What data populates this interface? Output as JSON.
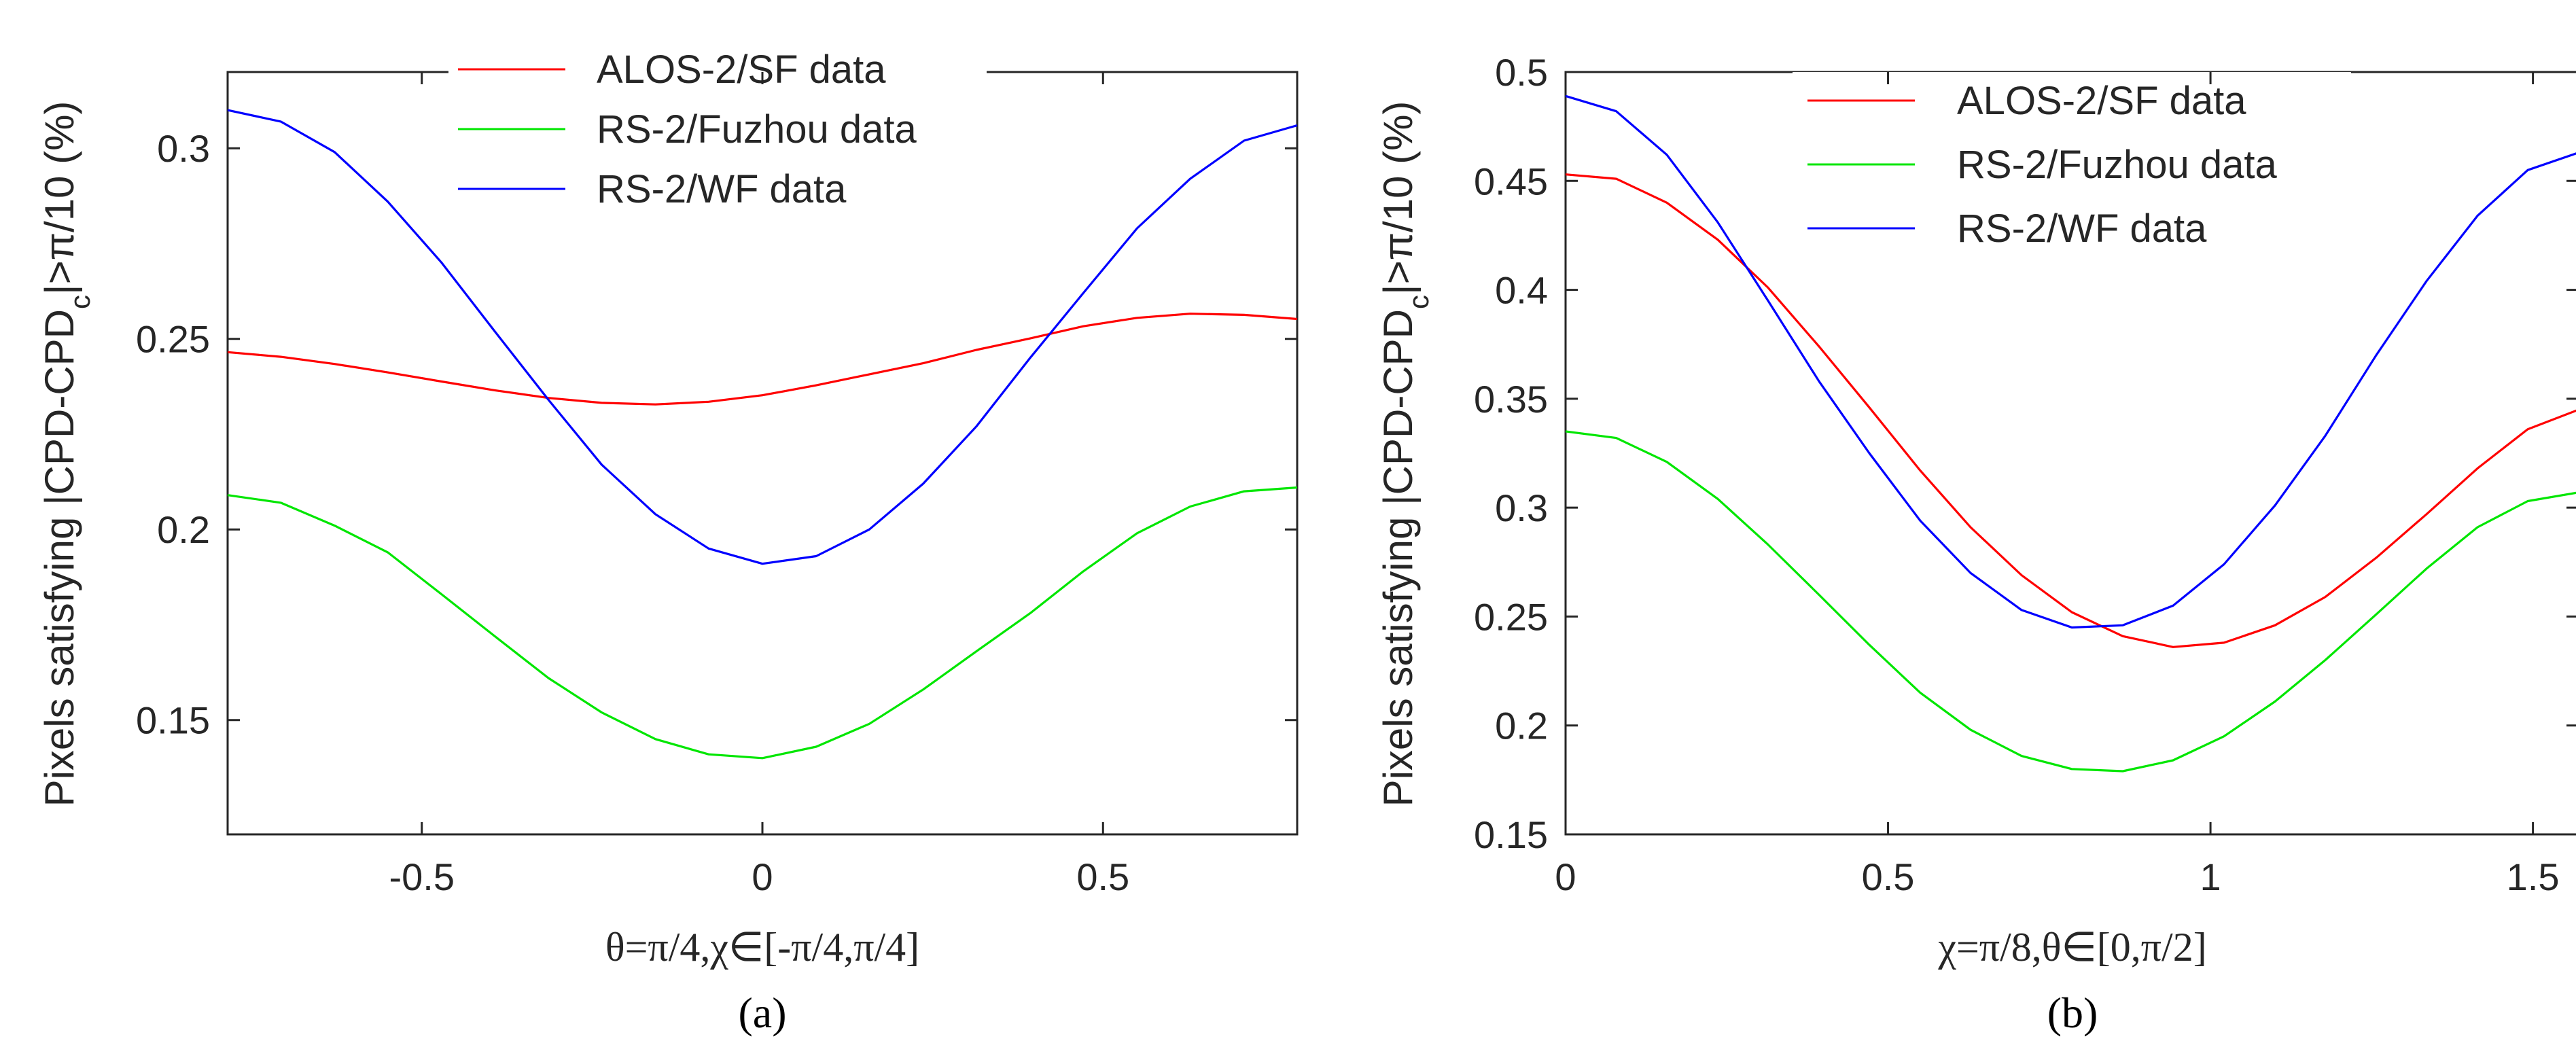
{
  "chart_data": [
    {
      "type": "line",
      "panel_label": "(a)",
      "xlabel": "θ=π/4,χ∈[-π/4,π/4]",
      "ylabel": "Pixels satisfying |CPD-CPD_c|>π/10 (%)",
      "ylabel_main": "Pixels satisfying |CPD-CPD",
      "ylabel_sub": "c",
      "ylabel_tail": "|>π/10 (%)",
      "xlim": [
        -0.785,
        0.785
      ],
      "ylim": [
        0.12,
        0.32
      ],
      "xticks": [
        -0.5,
        0,
        0.5
      ],
      "xtick_labels": [
        "-0.5",
        "0",
        "0.5"
      ],
      "yticks": [
        0.15,
        0.2,
        0.25,
        0.3
      ],
      "ytick_labels": [
        "0.15",
        "0.2",
        "0.25",
        "0.3"
      ],
      "legend_position": "top-center",
      "x": [
        -0.785,
        -0.707,
        -0.628,
        -0.55,
        -0.471,
        -0.393,
        -0.314,
        -0.236,
        -0.157,
        -0.079,
        0,
        0.079,
        0.157,
        0.236,
        0.314,
        0.393,
        0.471,
        0.55,
        0.628,
        0.707,
        0.785
      ],
      "series": [
        {
          "name": "ALOS-2/SF data",
          "color": "#ff0000",
          "values": [
            0.2465,
            0.2453,
            0.2434,
            0.2412,
            0.2388,
            0.2365,
            0.2345,
            0.2332,
            0.2328,
            0.2335,
            0.2352,
            0.2378,
            0.2407,
            0.2436,
            0.2471,
            0.2501,
            0.2533,
            0.2555,
            0.2566,
            0.2563,
            0.2552
          ]
        },
        {
          "name": "RS-2/Fuzhou data",
          "color": "#00e600",
          "values": [
            0.209,
            0.207,
            0.201,
            0.194,
            0.183,
            0.172,
            0.161,
            0.152,
            0.145,
            0.141,
            0.14,
            0.143,
            0.149,
            0.158,
            0.168,
            0.178,
            0.189,
            0.199,
            0.206,
            0.21,
            0.211
          ]
        },
        {
          "name": "RS-2/WF data",
          "color": "#0000ff",
          "values": [
            0.31,
            0.307,
            0.299,
            0.286,
            0.27,
            0.252,
            0.234,
            0.217,
            0.204,
            0.195,
            0.191,
            0.193,
            0.2,
            0.212,
            0.227,
            0.245,
            0.262,
            0.279,
            0.292,
            0.302,
            0.306
          ]
        }
      ]
    },
    {
      "type": "line",
      "panel_label": "(b)",
      "xlabel": "χ=π/8,θ∈[0,π/2]",
      "ylabel": "Pixels satisfying |CPD-CPD_c|>π/10 (%)",
      "ylabel_main": "Pixels satisfying |CPD-CPD",
      "ylabel_sub": "c",
      "ylabel_tail": "|>π/10 (%)",
      "xlim": [
        0,
        1.571
      ],
      "ylim": [
        0.15,
        0.5
      ],
      "xticks": [
        0,
        0.5,
        1,
        1.5
      ],
      "xtick_labels": [
        "0",
        "0.5",
        "1",
        "1.5"
      ],
      "yticks": [
        0.15,
        0.2,
        0.25,
        0.3,
        0.35,
        0.4,
        0.45,
        0.5
      ],
      "ytick_labels": [
        "0.15",
        "0.2",
        "0.25",
        "0.3",
        "0.35",
        "0.4",
        "0.45",
        "0.5"
      ],
      "legend_position": "top-center",
      "x": [
        0,
        0.0785,
        0.157,
        0.236,
        0.314,
        0.393,
        0.471,
        0.55,
        0.628,
        0.707,
        0.785,
        0.864,
        0.942,
        1.021,
        1.1,
        1.178,
        1.257,
        1.335,
        1.414,
        1.492,
        1.571
      ],
      "series": [
        {
          "name": "ALOS-2/SF data",
          "color": "#ff0000",
          "values": [
            0.453,
            0.451,
            0.44,
            0.423,
            0.401,
            0.374,
            0.346,
            0.317,
            0.291,
            0.269,
            0.252,
            0.241,
            0.236,
            0.238,
            0.246,
            0.259,
            0.277,
            0.297,
            0.318,
            0.336,
            0.345
          ]
        },
        {
          "name": "RS-2/Fuzhou data",
          "color": "#00e600",
          "values": [
            0.335,
            0.332,
            0.321,
            0.304,
            0.283,
            0.26,
            0.237,
            0.215,
            0.198,
            0.186,
            0.18,
            0.179,
            0.184,
            0.195,
            0.211,
            0.23,
            0.251,
            0.272,
            0.291,
            0.303,
            0.307
          ]
        },
        {
          "name": "RS-2/WF data",
          "color": "#0000ff",
          "values": [
            0.489,
            0.482,
            0.462,
            0.431,
            0.395,
            0.358,
            0.325,
            0.294,
            0.27,
            0.253,
            0.245,
            0.246,
            0.255,
            0.274,
            0.301,
            0.333,
            0.37,
            0.404,
            0.434,
            0.455,
            0.463
          ]
        }
      ]
    }
  ]
}
